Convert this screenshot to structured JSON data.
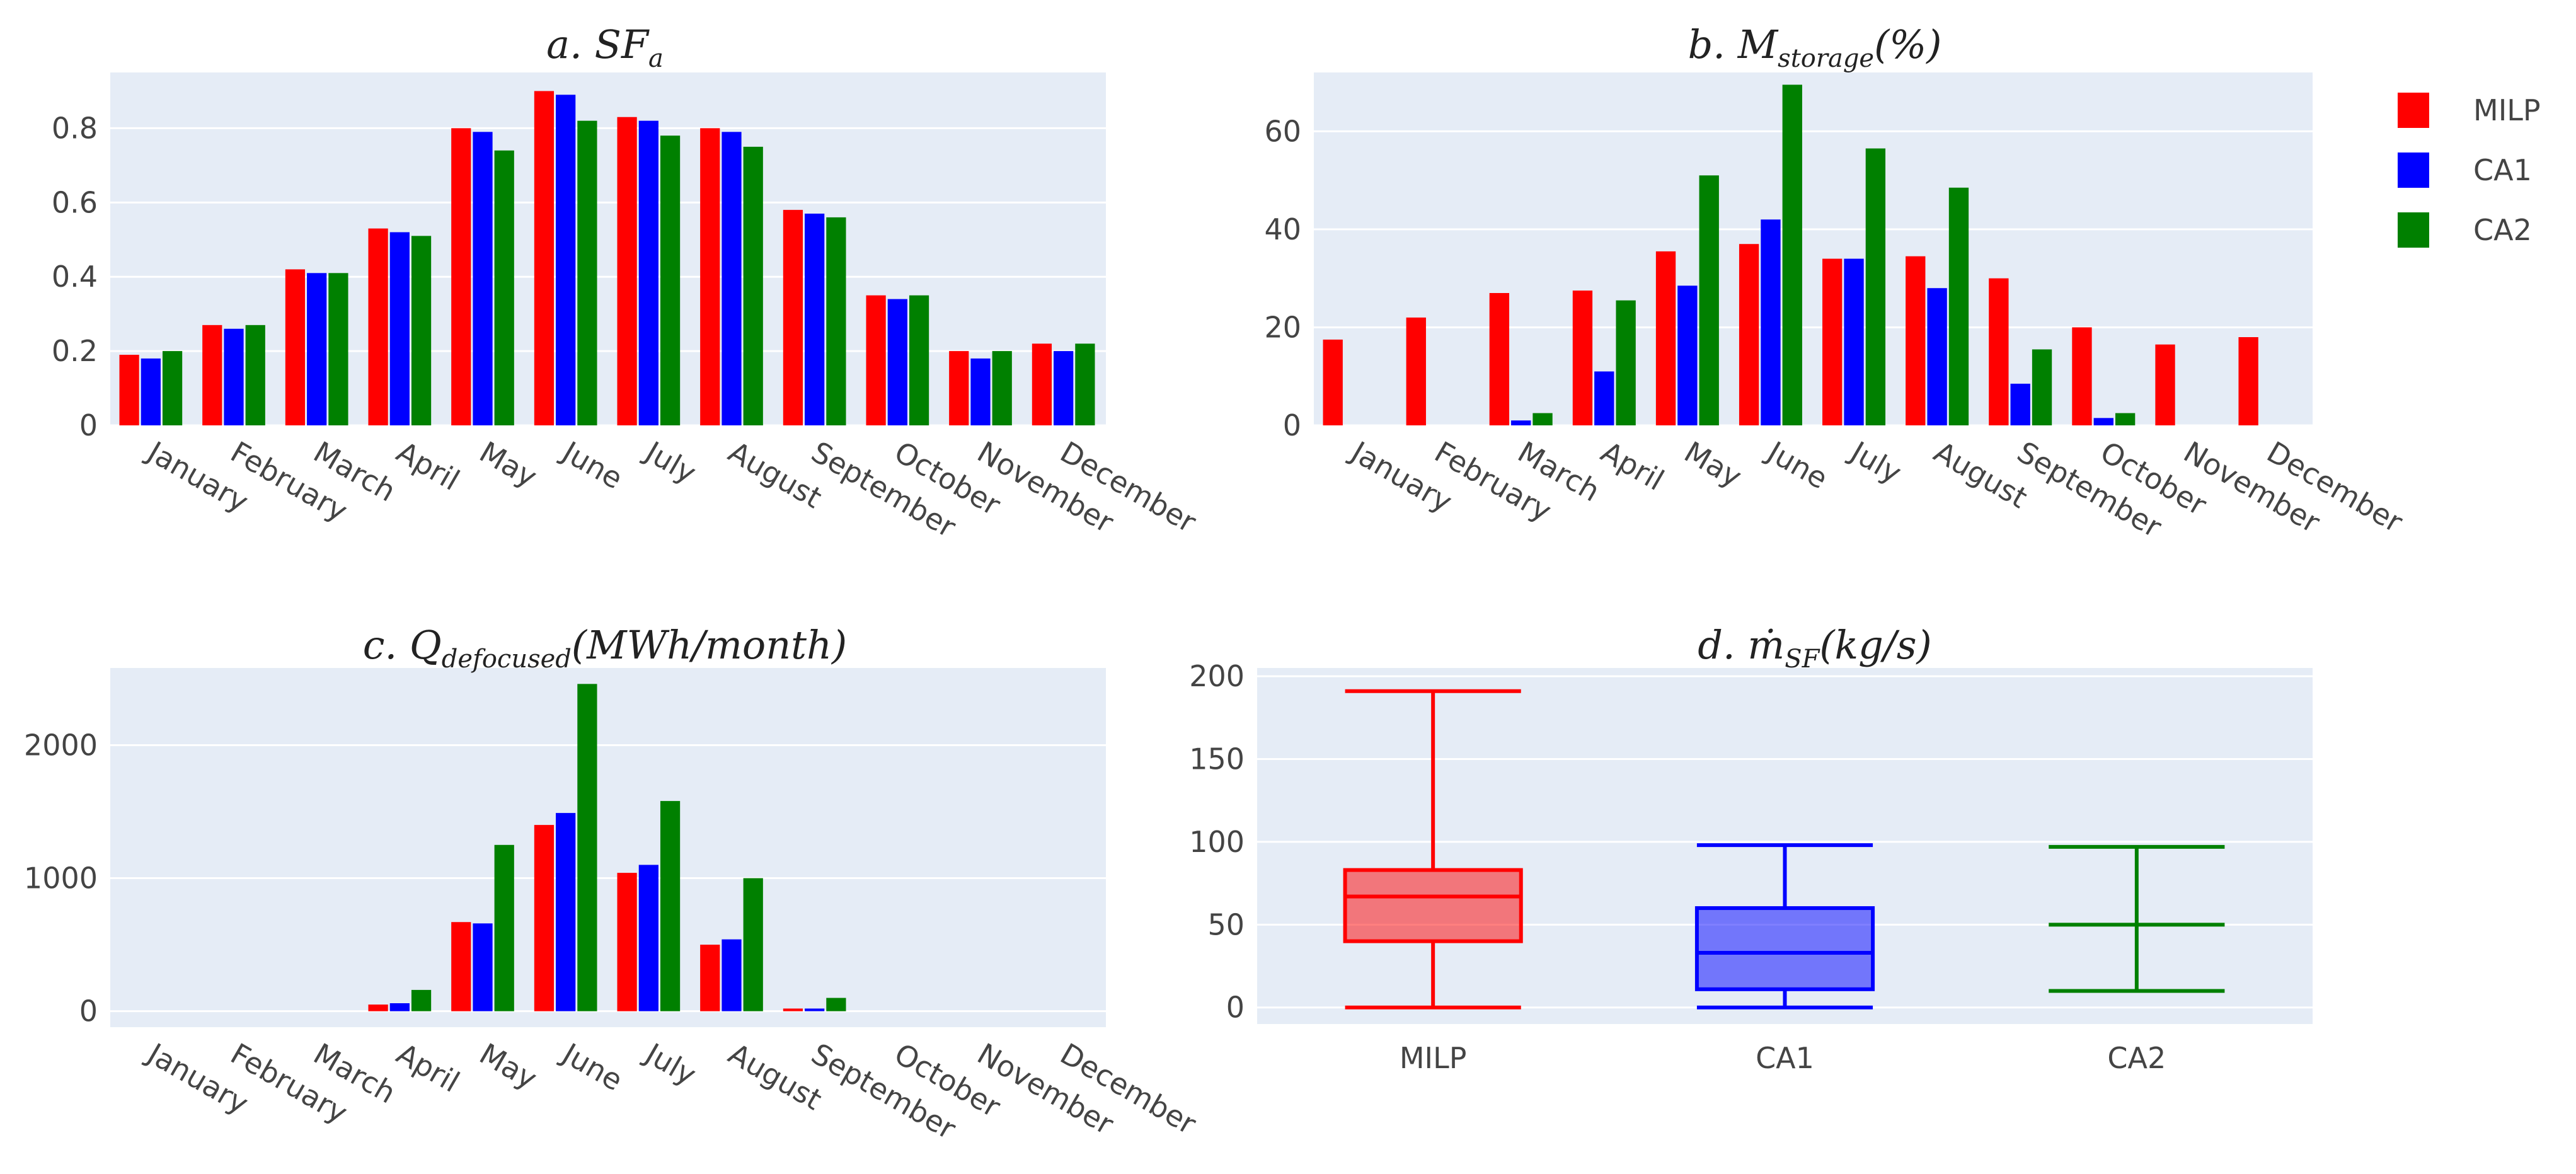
{
  "colors": {
    "plot_bg": "#e5ecf6",
    "grid": "#ffffff",
    "tick_text": "#444444"
  },
  "legend": [
    {
      "name": "MILP",
      "color": "#ff0000"
    },
    {
      "name": "CA1",
      "color": "#0000ff"
    },
    {
      "name": "CA2",
      "color": "#008000"
    }
  ],
  "chart_data": [
    {
      "id": "a",
      "type": "bar",
      "title": {
        "prefix": "a.",
        "main": "SF",
        "sub": "a",
        "suffix": ""
      },
      "categories": [
        "January",
        "February",
        "March",
        "April",
        "May",
        "June",
        "July",
        "August",
        "September",
        "October",
        "November",
        "December"
      ],
      "series": [
        {
          "name": "MILP",
          "values": [
            0.19,
            0.27,
            0.42,
            0.53,
            0.8,
            0.9,
            0.83,
            0.8,
            0.58,
            0.35,
            0.2,
            0.22
          ]
        },
        {
          "name": "CA1",
          "values": [
            0.18,
            0.26,
            0.41,
            0.52,
            0.79,
            0.89,
            0.82,
            0.79,
            0.57,
            0.34,
            0.18,
            0.2
          ]
        },
        {
          "name": "CA2",
          "values": [
            0.2,
            0.27,
            0.41,
            0.51,
            0.74,
            0.82,
            0.78,
            0.75,
            0.56,
            0.35,
            0.2,
            0.22
          ]
        }
      ],
      "ylim": [
        0,
        0.95
      ],
      "yticks": [
        0,
        0.2,
        0.4,
        0.6,
        0.8
      ],
      "ytick_labels": [
        "0",
        "0.2",
        "0.4",
        "0.6",
        "0.8"
      ]
    },
    {
      "id": "b",
      "type": "bar",
      "title": {
        "prefix": "b.",
        "main": "M",
        "sub": "storage",
        "suffix": "(%)"
      },
      "categories": [
        "January",
        "February",
        "March",
        "April",
        "May",
        "June",
        "July",
        "August",
        "September",
        "October",
        "November",
        "December"
      ],
      "series": [
        {
          "name": "MILP",
          "values": [
            17.5,
            22,
            27,
            27.5,
            35.5,
            37,
            34,
            34.5,
            30,
            20,
            16.5,
            18
          ]
        },
        {
          "name": "CA1",
          "values": [
            0,
            0,
            1,
            11,
            28.5,
            42,
            34,
            28,
            8.5,
            1.5,
            0,
            0
          ]
        },
        {
          "name": "CA2",
          "values": [
            0,
            0,
            2.5,
            25.5,
            51,
            69.5,
            56.5,
            48.5,
            15.5,
            2.5,
            0,
            0
          ]
        }
      ],
      "ylim": [
        0,
        72
      ],
      "yticks": [
        0,
        20,
        40,
        60
      ],
      "ytick_labels": [
        "0",
        "20",
        "40",
        "60"
      ]
    },
    {
      "id": "c",
      "type": "bar",
      "title": {
        "prefix": "c.",
        "main": "Q",
        "sub": "defocused",
        "suffix": "(MWh/month)"
      },
      "categories": [
        "January",
        "February",
        "March",
        "April",
        "May",
        "June",
        "July",
        "August",
        "September",
        "October",
        "November",
        "December"
      ],
      "series": [
        {
          "name": "MILP",
          "values": [
            0,
            0,
            0,
            50,
            670,
            1400,
            1040,
            500,
            20,
            0,
            0,
            0
          ]
        },
        {
          "name": "CA1",
          "values": [
            0,
            0,
            0,
            60,
            660,
            1490,
            1100,
            540,
            20,
            0,
            0,
            0
          ]
        },
        {
          "name": "CA2",
          "values": [
            0,
            0,
            0,
            160,
            1250,
            2460,
            1580,
            1000,
            100,
            0,
            0,
            0
          ]
        }
      ],
      "ylim": [
        -120,
        2580
      ],
      "yticks": [
        0,
        1000,
        2000
      ],
      "ytick_labels": [
        "0",
        "1000",
        "2000"
      ]
    },
    {
      "id": "d",
      "type": "box",
      "title": {
        "prefix": "d.",
        "main": "ṁ",
        "sub": "SF",
        "suffix": "(kg/s)"
      },
      "categories": [
        "MILP",
        "CA1",
        "CA2"
      ],
      "boxes": [
        {
          "name": "MILP",
          "min": 0,
          "q1": 40,
          "median": 67,
          "q3": 83,
          "max": 191
        },
        {
          "name": "CA1",
          "min": 0,
          "q1": 11,
          "median": 33,
          "q3": 60,
          "max": 98
        },
        {
          "name": "CA2",
          "min": 10,
          "q1": 50,
          "median": 50,
          "q3": 50,
          "max": 97
        }
      ],
      "ylim": [
        -10,
        205
      ],
      "yticks": [
        0,
        50,
        100,
        150,
        200
      ],
      "ytick_labels": [
        "0",
        "50",
        "100",
        "150",
        "200"
      ]
    }
  ]
}
